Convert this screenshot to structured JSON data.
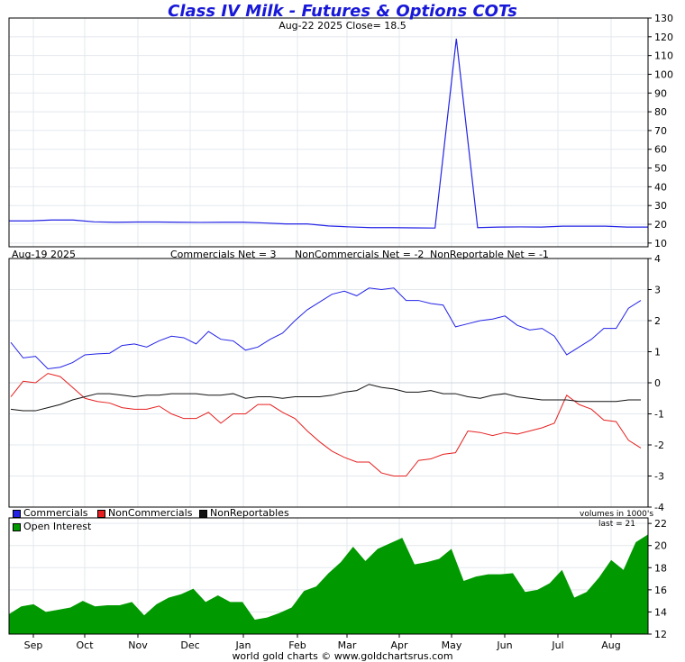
{
  "title": "Class IV Milk - Futures & Options COTs",
  "subtitle": "Aug-22  2025   Close= 18.5",
  "footer": "world gold charts © www.goldchartsrus.com",
  "x_labels": [
    "Sep",
    "Oct",
    "Nov",
    "Dec",
    "Jan",
    "Feb",
    "Mar",
    "Apr",
    "May",
    "Jun",
    "Jul",
    "Aug"
  ],
  "panels": {
    "price": {
      "y_ticks": [
        "130",
        "120",
        "110",
        "100",
        "90",
        "80",
        "70",
        "60",
        "50",
        "40",
        "30",
        "20",
        "10"
      ]
    },
    "cot": {
      "date": "Aug-19  2025",
      "commercials_net": "Commercials Net = 3",
      "noncommercials_net": "NonCommercials Net = -2",
      "nonreportable_net": "NonReportable Net = -1",
      "y_ticks": [
        "4",
        "3",
        "2",
        "1",
        "0",
        "-1",
        "-2",
        "-3",
        "-4"
      ],
      "legend": [
        "Commercials",
        "NonCommercials",
        "NonReportables"
      ],
      "units_note": "volumes in 1000's"
    },
    "oi": {
      "legend": "Open Interest",
      "last_note": "last = 21",
      "y_ticks": [
        "22",
        "20",
        "18",
        "16",
        "14",
        "12"
      ]
    }
  },
  "colors": {
    "title": "#1818d8",
    "price": "#2323e6",
    "commercials": "#2323e6",
    "noncommercials": "#e62020",
    "nonreportables": "#111111",
    "open_interest": "#009900",
    "grid": "#e3e8ee"
  },
  "chart_data": [
    {
      "type": "line",
      "title": "Class IV Milk - Futures & Options COTs",
      "ylim": [
        8,
        130
      ],
      "series": [
        {
          "values": [
            21.8,
            21.8,
            22.3,
            22.3,
            21.3,
            21.1,
            21.2,
            21.2,
            21.1,
            21.0,
            21.1,
            21.1,
            20.7,
            20.2,
            20.2,
            19.1,
            18.6,
            18.2,
            18.2,
            18.1,
            18.0,
            119.0,
            18.2,
            18.5,
            18.6,
            18.5,
            19.0,
            19.0,
            19.0,
            18.5,
            18.5
          ]
        }
      ]
    },
    {
      "type": "line",
      "ylim": [
        -4,
        4
      ],
      "series": [
        {
          "name": "Commercials",
          "values": [
            1.3,
            0.8,
            0.85,
            0.45,
            0.5,
            0.65,
            0.9,
            0.93,
            0.95,
            1.2,
            1.25,
            1.15,
            1.35,
            1.5,
            1.45,
            1.25,
            1.65,
            1.4,
            1.35,
            1.05,
            1.15,
            1.4,
            1.6,
            2.0,
            2.35,
            2.6,
            2.85,
            2.95,
            2.8,
            3.05,
            3.0,
            3.05,
            2.65,
            2.65,
            2.55,
            2.5,
            1.8,
            1.9,
            2.0,
            2.05,
            2.15,
            1.85,
            1.7,
            1.75,
            1.5,
            0.9,
            1.15,
            1.4,
            1.75,
            1.75,
            2.4,
            2.65
          ]
        },
        {
          "name": "NonCommercials",
          "values": [
            -0.45,
            0.05,
            0.0,
            0.3,
            0.2,
            -0.15,
            -0.5,
            -0.6,
            -0.65,
            -0.8,
            -0.85,
            -0.85,
            -0.75,
            -1.0,
            -1.15,
            -1.15,
            -0.95,
            -1.3,
            -1.0,
            -1.0,
            -0.7,
            -0.7,
            -0.95,
            -1.15,
            -1.55,
            -1.9,
            -2.2,
            -2.4,
            -2.55,
            -2.55,
            -2.9,
            -3.0,
            -3.0,
            -2.5,
            -2.45,
            -2.3,
            -2.25,
            -1.55,
            -1.6,
            -1.7,
            -1.6,
            -1.65,
            -1.55,
            -1.45,
            -1.3,
            -0.4,
            -0.7,
            -0.85,
            -1.2,
            -1.25,
            -1.85,
            -2.1
          ]
        },
        {
          "name": "NonReportables",
          "values": [
            -0.85,
            -0.9,
            -0.9,
            -0.8,
            -0.7,
            -0.55,
            -0.45,
            -0.35,
            -0.35,
            -0.4,
            -0.45,
            -0.4,
            -0.4,
            -0.35,
            -0.35,
            -0.35,
            -0.4,
            -0.4,
            -0.35,
            -0.5,
            -0.45,
            -0.45,
            -0.5,
            -0.45,
            -0.45,
            -0.45,
            -0.4,
            -0.3,
            -0.25,
            -0.05,
            -0.15,
            -0.2,
            -0.3,
            -0.3,
            -0.25,
            -0.35,
            -0.35,
            -0.45,
            -0.5,
            -0.4,
            -0.35,
            -0.45,
            -0.5,
            -0.55,
            -0.55,
            -0.55,
            -0.6,
            -0.6,
            -0.6,
            -0.6,
            -0.55,
            -0.55
          ]
        }
      ]
    },
    {
      "type": "area",
      "ylim": [
        12,
        22.5
      ],
      "series": [
        {
          "name": "Open Interest",
          "values": [
            13.8,
            14.5,
            14.7,
            14.0,
            14.2,
            14.4,
            15.0,
            14.5,
            14.6,
            14.6,
            14.9,
            13.7,
            14.7,
            15.3,
            15.6,
            16.1,
            14.9,
            15.5,
            14.9,
            14.9,
            13.3,
            13.5,
            13.9,
            14.4,
            15.9,
            16.3,
            17.5,
            18.5,
            19.9,
            18.6,
            19.7,
            20.2,
            20.7,
            18.3,
            18.5,
            18.8,
            19.7,
            16.8,
            17.2,
            17.4,
            17.4,
            17.5,
            15.8,
            16.0,
            16.6,
            17.8,
            15.3,
            15.8,
            17.1,
            18.7,
            17.8,
            20.3,
            21.0
          ]
        }
      ]
    }
  ]
}
